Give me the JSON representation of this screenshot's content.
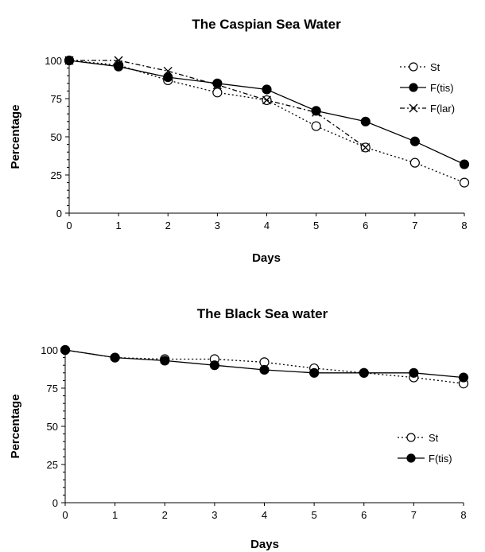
{
  "chart_data": [
    {
      "type": "line",
      "title": "The Caspian Sea Water",
      "xlabel": "Days",
      "ylabel": "Percentage",
      "xlim": [
        0,
        8
      ],
      "ylim": [
        0,
        100
      ],
      "xticks": [
        "0",
        "1",
        "2",
        "3",
        "4",
        "5",
        "6",
        "7",
        "8"
      ],
      "yticks": [
        "0",
        "25",
        "50",
        "75",
        "100"
      ],
      "grid": false,
      "legend_position": "top-right",
      "series": [
        {
          "name": "St",
          "marker": "open-circle",
          "line": "dotted",
          "x": [
            0,
            1,
            2,
            3,
            4,
            5,
            6,
            7,
            8
          ],
          "values": [
            100,
            97,
            87,
            79,
            74,
            57,
            43,
            33,
            20
          ]
        },
        {
          "name": "F(tis)",
          "marker": "filled-circle",
          "line": "solid",
          "x": [
            0,
            1,
            2,
            3,
            4,
            5,
            6,
            7,
            8
          ],
          "values": [
            100,
            96,
            89,
            85,
            81,
            67,
            60,
            47,
            32
          ]
        },
        {
          "name": "F(lar)",
          "marker": "x",
          "line": "dash-dot",
          "x": [
            0,
            1,
            2,
            3,
            4,
            5,
            6
          ],
          "values": [
            100,
            100,
            93,
            84,
            74,
            66,
            43
          ]
        }
      ]
    },
    {
      "type": "line",
      "title": "The Black Sea water",
      "xlabel": "Days",
      "ylabel": "Percentage",
      "xlim": [
        0,
        8
      ],
      "ylim": [
        0,
        100
      ],
      "xticks": [
        "0",
        "1",
        "2",
        "3",
        "4",
        "5",
        "6",
        "7",
        "8"
      ],
      "yticks": [
        "0",
        "25",
        "50",
        "75",
        "100"
      ],
      "grid": false,
      "legend_position": "right",
      "series": [
        {
          "name": "St",
          "marker": "open-circle",
          "line": "dotted",
          "x": [
            0,
            1,
            2,
            3,
            4,
            5,
            6,
            7,
            8
          ],
          "values": [
            100,
            95,
            94,
            94,
            92,
            88,
            85,
            82,
            78
          ]
        },
        {
          "name": "F(tis)",
          "marker": "filled-circle",
          "line": "solid",
          "x": [
            0,
            1,
            2,
            3,
            4,
            5,
            6,
            7,
            8
          ],
          "values": [
            100,
            95,
            93,
            90,
            87,
            85,
            85,
            85,
            82
          ]
        }
      ]
    }
  ]
}
